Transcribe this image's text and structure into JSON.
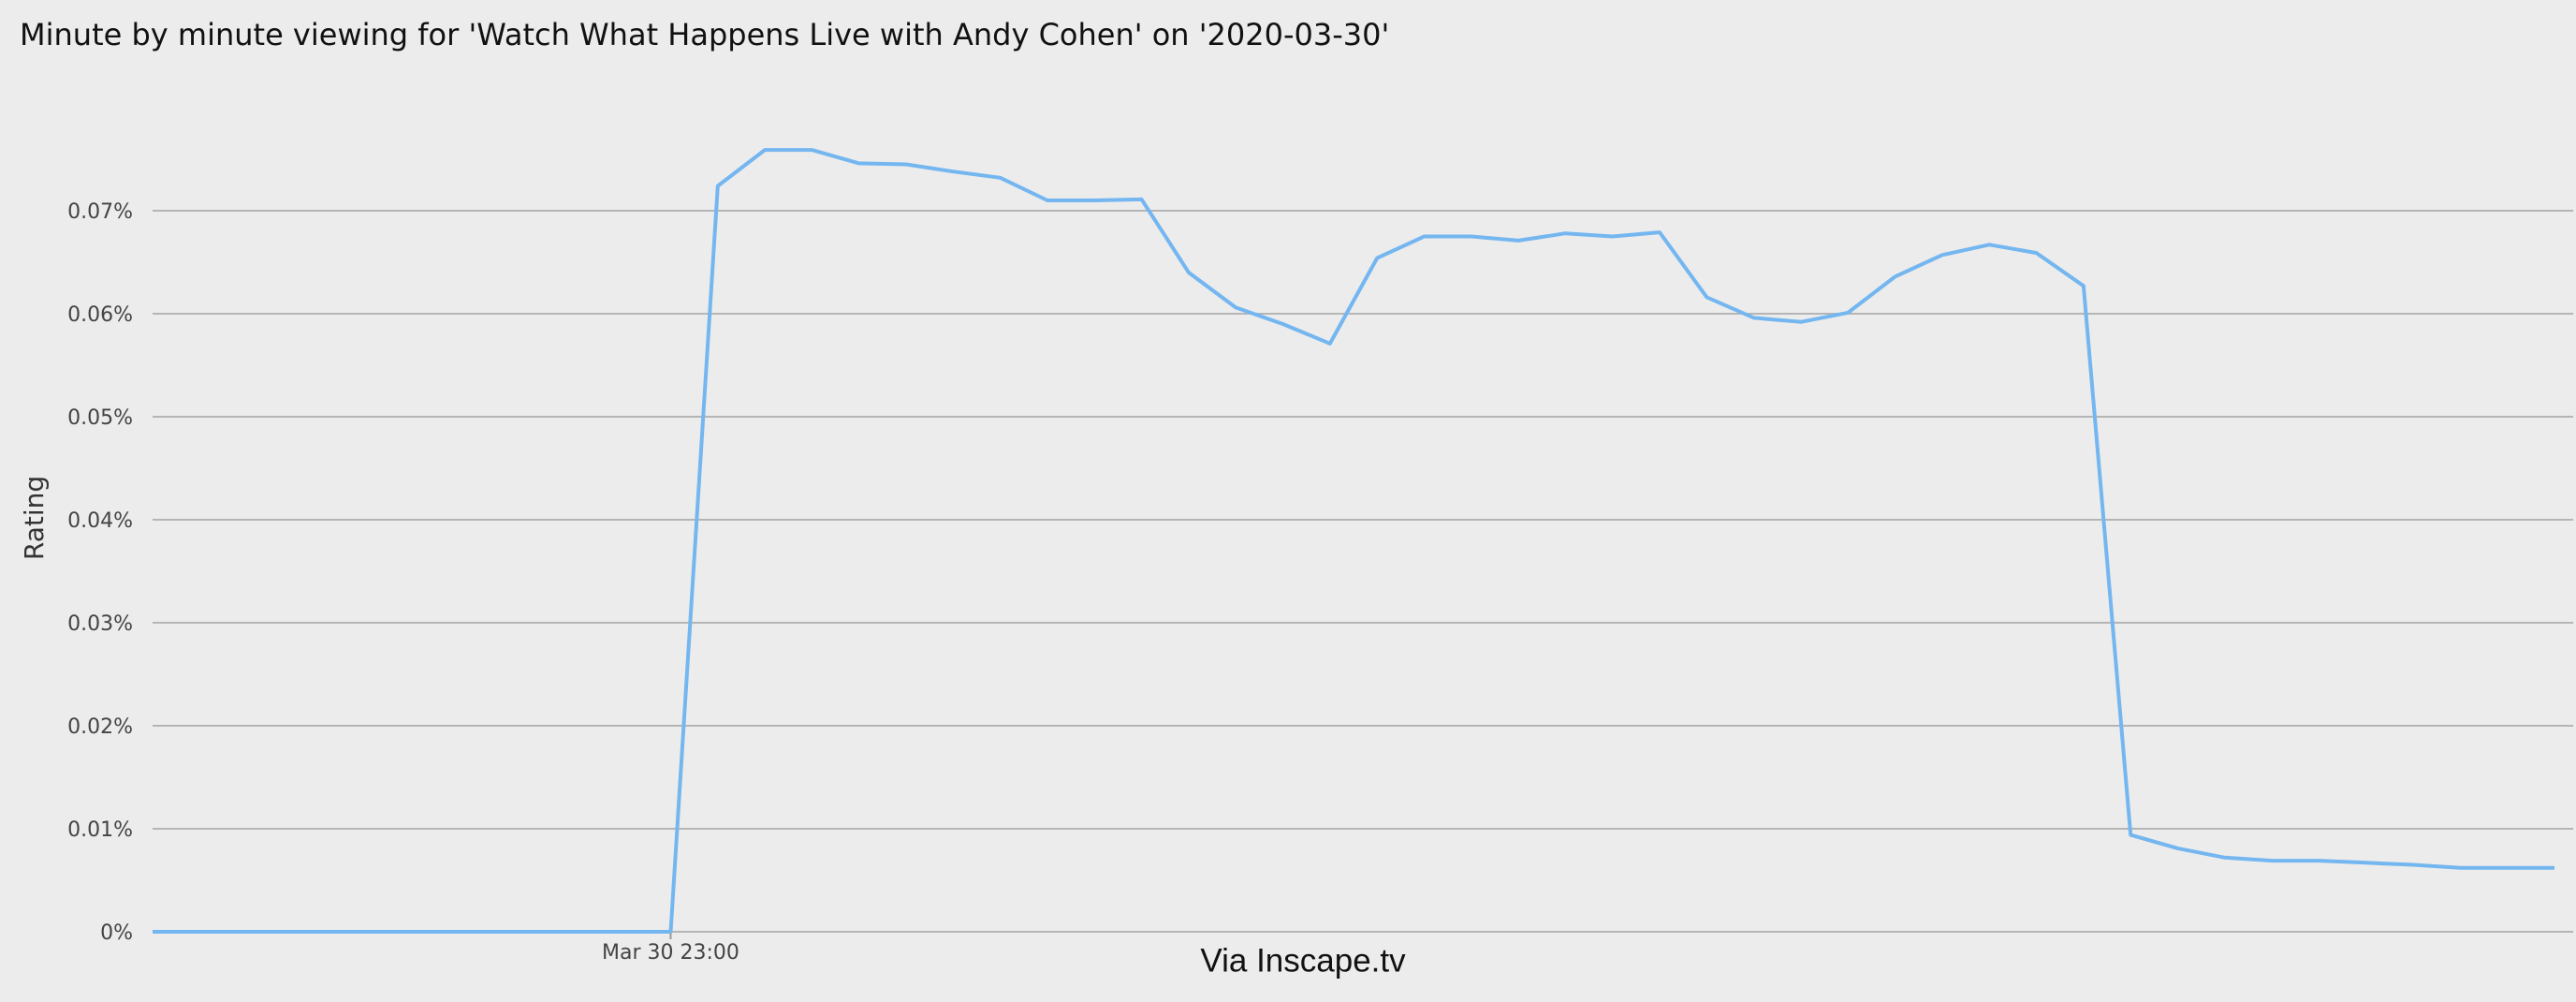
{
  "chart_data": {
    "type": "line",
    "title": "Minute by minute viewing for 'Watch What Happens Live with Andy Cohen' on '2020-03-30'",
    "y_label": "Rating",
    "source": "Via Inscape.tv",
    "categories": [
      null,
      null,
      null,
      null,
      null,
      null,
      null,
      null,
      null,
      null,
      null,
      "Mar 30 23:00",
      null,
      null,
      null,
      null,
      null,
      null,
      null,
      null,
      null,
      null,
      null,
      null,
      null,
      null,
      null,
      null,
      null,
      null,
      null,
      null,
      null,
      null,
      null,
      null,
      null,
      null,
      null,
      null,
      null,
      null,
      null,
      null,
      null,
      null,
      null,
      null,
      null,
      null,
      null,
      null
    ],
    "series": [
      {
        "name": "Rating",
        "color": "#74b6f0",
        "values": [
          0,
          0,
          0,
          0,
          0,
          0,
          0,
          0,
          0,
          0,
          0,
          0,
          0.0724,
          0.0759,
          0.0759,
          0.0746,
          0.0745,
          0.0738,
          0.0732,
          0.071,
          0.071,
          0.0711,
          0.064,
          0.0606,
          0.059,
          0.0571,
          0.0654,
          0.0675,
          0.0675,
          0.0671,
          0.0678,
          0.0675,
          0.0679,
          0.0616,
          0.0596,
          0.0592,
          0.0601,
          0.0636,
          0.0657,
          0.0667,
          0.0659,
          0.0627,
          0.0094,
          0.0081,
          0.0072,
          0.0069,
          0.0069,
          0.0067,
          0.0065,
          0.0062,
          0.0062,
          0.0062
        ]
      }
    ],
    "ylim": [
      0,
      0.08
    ],
    "yticks": [
      {
        "value": 0,
        "label": "0%"
      },
      {
        "value": 0.01,
        "label": "0.01%"
      },
      {
        "value": 0.02,
        "label": "0.02%"
      },
      {
        "value": 0.03,
        "label": "0.03%"
      },
      {
        "value": 0.04,
        "label": "0.04%"
      },
      {
        "value": 0.05,
        "label": "0.05%"
      },
      {
        "value": 0.06,
        "label": "0.06%"
      },
      {
        "value": 0.07,
        "label": "0.07%"
      }
    ],
    "grid": true
  }
}
